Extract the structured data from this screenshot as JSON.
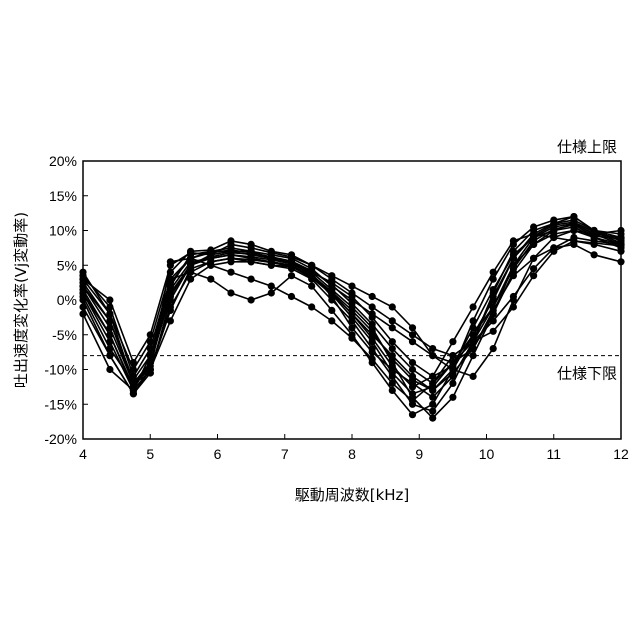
{
  "chart_data": {
    "type": "line",
    "title": "",
    "xlabel": "駆動周波数[kHz]",
    "ylabel": "吐出速度変化率(Vj変動率)",
    "xlim": [
      4,
      12
    ],
    "ylim": [
      -20,
      20
    ],
    "x_ticks": [
      "4",
      "5",
      "6",
      "7",
      "8",
      "9",
      "10",
      "11",
      "12"
    ],
    "y_ticks": [
      "-20%",
      "-15%",
      "-10%",
      "-5%",
      "0%",
      "5%",
      "10%",
      "15%",
      "20%"
    ],
    "grid": false,
    "legend": "none",
    "line_color": "#000000",
    "reference_lines": [
      {
        "label": "仕様上限",
        "y": 20,
        "style": "dashed"
      },
      {
        "label": "仕様下限",
        "y": -8,
        "style": "dashed"
      }
    ],
    "x": [
      4.0,
      4.4,
      4.75,
      5.0,
      5.3,
      5.6,
      5.9,
      6.2,
      6.5,
      6.8,
      7.1,
      7.4,
      7.7,
      8.0,
      8.3,
      8.6,
      8.9,
      9.2,
      9.5,
      9.8,
      10.1,
      10.4,
      10.7,
      11.0,
      11.3,
      11.6,
      12.0
    ],
    "series": [
      {
        "values": [
          3.5,
          -1,
          -11,
          -7,
          3,
          6,
          7,
          7.5,
          7,
          6.5,
          6,
          4.5,
          2,
          0,
          -2,
          -4,
          -6,
          -8,
          -9,
          -7,
          -2,
          5,
          9,
          10.5,
          11,
          9.5,
          8
        ]
      },
      {
        "values": [
          2,
          -4,
          -12,
          -9,
          1,
          5,
          6,
          6.5,
          6,
          5.5,
          5,
          3.5,
          1,
          -2,
          -5,
          -8,
          -11,
          -13,
          -10,
          -5,
          0,
          6,
          9.5,
          11,
          11.5,
          10,
          9
        ]
      },
      {
        "values": [
          1,
          -6,
          -13,
          -10,
          -1,
          4,
          5.5,
          6,
          5.5,
          5,
          4.5,
          3,
          0,
          -3,
          -7,
          -11,
          -15,
          -16,
          -12,
          -6,
          1,
          7,
          10,
          11,
          12,
          10,
          8.5
        ]
      },
      {
        "values": [
          4,
          -2,
          -10,
          -6,
          4,
          7,
          7.2,
          8.5,
          8,
          7,
          6.5,
          5,
          3,
          1,
          -1,
          -3,
          -5,
          -7,
          -8,
          -6,
          -1,
          5,
          8,
          9.5,
          10,
          9,
          7.5
        ]
      },
      {
        "values": [
          0,
          -8,
          -13.5,
          -10.5,
          0,
          5,
          6.5,
          7,
          7,
          6,
          5.5,
          4,
          1.5,
          -1,
          -4,
          -9,
          -14,
          -17,
          -14,
          -8,
          -2,
          4,
          8,
          10,
          11,
          9.5,
          9
        ]
      },
      {
        "values": [
          2.5,
          -3,
          -11.5,
          -8,
          2,
          6.5,
          7,
          7,
          6.5,
          6,
          5.5,
          4,
          2.5,
          0.5,
          -2.5,
          -6,
          -9,
          -11,
          -9.5,
          -4,
          1.5,
          6.5,
          9,
          10,
          10.5,
          9,
          8
        ]
      },
      {
        "values": [
          -2,
          -10,
          -13,
          -8,
          3,
          4,
          3,
          1,
          0,
          1,
          3.5,
          2,
          -1.5,
          -5,
          -9,
          -13,
          -16.5,
          -15,
          -10,
          -3,
          3,
          8,
          10.5,
          11.5,
          12,
          10,
          9.5
        ]
      },
      {
        "values": [
          3,
          0,
          -9,
          -5,
          5,
          6.8,
          6.5,
          8,
          7.5,
          6.8,
          6.2,
          5,
          3.5,
          2,
          0.5,
          -1,
          -4,
          -8,
          -10,
          -11,
          -7,
          0,
          6,
          9,
          10,
          9.5,
          10
        ]
      },
      {
        "values": [
          1.5,
          -5,
          -12.5,
          -9.5,
          1.5,
          5.5,
          6,
          6.5,
          6.2,
          5.8,
          5.2,
          3.8,
          0.5,
          -4,
          -7.5,
          -10,
          -12,
          -14,
          -11,
          -6,
          0.5,
          6,
          9.2,
          10.8,
          11.2,
          9.8,
          8.2
        ]
      },
      {
        "values": [
          0.5,
          -7,
          -12,
          -10,
          -3,
          3,
          5,
          5.5,
          5.5,
          5,
          4.8,
          3.2,
          0.8,
          -2.5,
          -6,
          -10.5,
          -13.5,
          -12.5,
          -9,
          -5,
          -1,
          4.5,
          8.5,
          10.2,
          10.8,
          9.2,
          8.8
        ]
      },
      {
        "values": [
          3,
          -2,
          -12,
          -10.5,
          5.5,
          6,
          5,
          4,
          3,
          2,
          0.5,
          -1,
          -3,
          -5.5,
          -8.5,
          -12,
          -14.5,
          -12,
          -8,
          -6,
          -4.5,
          -1,
          3.5,
          7,
          8.5,
          8.2,
          7.8
        ]
      },
      {
        "values": [
          -1,
          -8,
          -13.5,
          -10,
          -1.5,
          4.5,
          5.5,
          6,
          5.8,
          5.4,
          4.8,
          3.4,
          1,
          -2,
          -5.5,
          -9.5,
          -12.5,
          -11,
          -6,
          -1,
          4,
          8.5,
          9.5,
          9,
          8.5,
          8,
          7
        ]
      },
      {
        "values": [
          2,
          -3,
          -12,
          -9,
          2.5,
          6,
          6.8,
          7.2,
          6.8,
          6.2,
          5.6,
          4.2,
          2.2,
          -0.5,
          -3.5,
          -7,
          -10,
          -12,
          -9,
          -6,
          -3,
          0.5,
          4.5,
          7.5,
          9,
          8.5,
          8
        ]
      },
      {
        "values": [
          1,
          -5,
          -12.8,
          -9,
          0.5,
          5.2,
          6.2,
          6.8,
          6.6,
          6,
          5.4,
          3.6,
          1.2,
          -1.5,
          -4.5,
          -8.5,
          -11.5,
          -13,
          -10.5,
          -7,
          -1.5,
          3.5,
          6,
          7.5,
          8,
          6.5,
          5.5
        ]
      }
    ]
  }
}
